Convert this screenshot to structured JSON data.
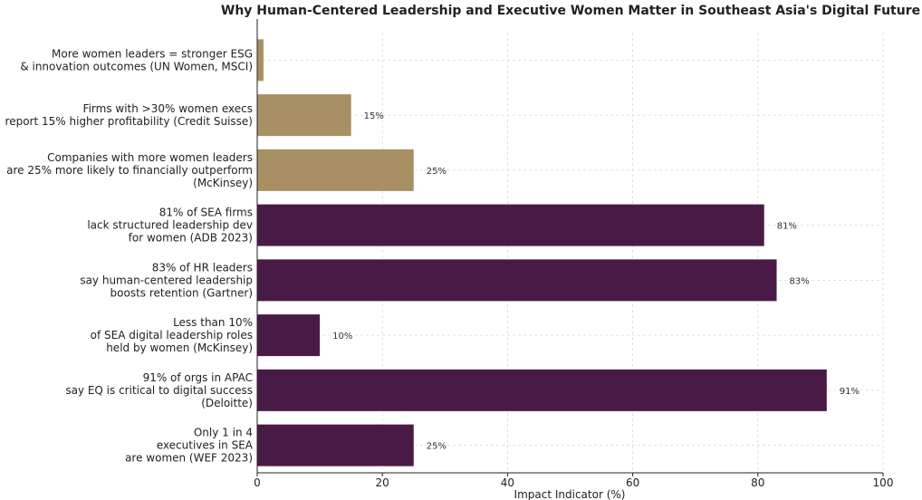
{
  "chart_data": {
    "type": "bar",
    "orientation": "horizontal",
    "title": "Why Human-Centered Leadership and Executive Women Matter in Southeast Asia's Digital Future",
    "xlabel": "Impact Indicator (%)",
    "ylabel": "",
    "xlim": [
      0,
      100
    ],
    "xticks": [
      "0",
      "20",
      "40",
      "60",
      "80",
      "100"
    ],
    "grid": true,
    "bars": [
      {
        "label": [
          "More women leaders = stronger ESG",
          "& innovation outcomes (UN Women, MSCI)"
        ],
        "value": 1,
        "data_label": "",
        "color": "#a89064"
      },
      {
        "label": [
          "Firms with >30% women execs",
          "report 15% higher profitability (Credit Suisse)"
        ],
        "value": 15,
        "data_label": "15%",
        "color": "#a89064"
      },
      {
        "label": [
          "Companies with more women leaders",
          "are 25% more likely to financially outperform",
          "(McKinsey)"
        ],
        "value": 25,
        "data_label": "25%",
        "color": "#a89064"
      },
      {
        "label": [
          "81% of SEA firms",
          "lack structured leadership dev",
          "for women (ADB 2023)"
        ],
        "value": 81,
        "data_label": "81%",
        "color": "#4a1a47"
      },
      {
        "label": [
          "83% of HR leaders",
          "say human-centered leadership",
          "boosts retention (Gartner)"
        ],
        "value": 83,
        "data_label": "83%",
        "color": "#4a1a47"
      },
      {
        "label": [
          "Less than 10%",
          "of SEA digital leadership roles",
          "held by women (McKinsey)"
        ],
        "value": 10,
        "data_label": "10%",
        "color": "#4a1a47"
      },
      {
        "label": [
          "91% of orgs in APAC",
          "say EQ is critical to digital success",
          "(Deloitte)"
        ],
        "value": 91,
        "data_label": "91%",
        "color": "#4a1a47"
      },
      {
        "label": [
          "Only 1 in 4",
          "executives in SEA",
          "are women (WEF 2023)"
        ],
        "value": 25,
        "data_label": "25%",
        "color": "#4a1a47"
      }
    ]
  }
}
